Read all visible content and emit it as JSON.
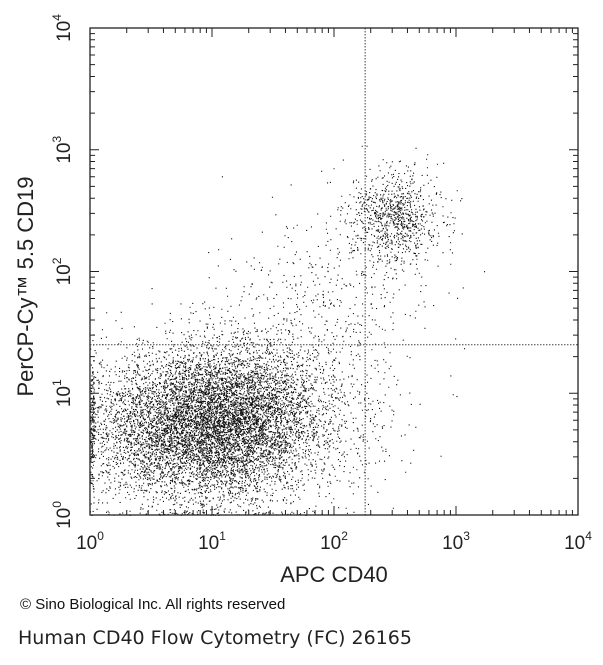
{
  "chart_data": {
    "type": "scatter",
    "xlabel": "APC CD40",
    "ylabel": "PerCP-Cy™ 5.5 CD19",
    "x_scale": "log",
    "y_scale": "log",
    "xlim": [
      1,
      10000
    ],
    "ylim": [
      1,
      10000
    ],
    "x_ticks": [
      {
        "value": 1,
        "base": "10",
        "exp": "0"
      },
      {
        "value": 10,
        "base": "10",
        "exp": "1"
      },
      {
        "value": 100,
        "base": "10",
        "exp": "2"
      },
      {
        "value": 1000,
        "base": "10",
        "exp": "3"
      },
      {
        "value": 10000,
        "base": "10",
        "exp": "4"
      }
    ],
    "y_ticks": [
      {
        "value": 1,
        "base": "10",
        "exp": "0"
      },
      {
        "value": 10,
        "base": "10",
        "exp": "1"
      },
      {
        "value": 100,
        "base": "10",
        "exp": "2"
      },
      {
        "value": 1000,
        "base": "10",
        "exp": "3"
      },
      {
        "value": 10000,
        "base": "10",
        "exp": "4"
      }
    ],
    "quadrant_gates": {
      "x": 180,
      "y": 25
    },
    "point_color": "#111111",
    "populations": [
      {
        "center": [
          12,
          6
        ],
        "spread_log": [
          0.38,
          0.32
        ],
        "count": 6500
      },
      {
        "center": [
          3,
          5
        ],
        "spread_log": [
          0.35,
          0.3
        ],
        "count": 1800
      },
      {
        "center": [
          50,
          7
        ],
        "spread_log": [
          0.4,
          0.35
        ],
        "count": 900
      },
      {
        "center": [
          320,
          280
        ],
        "spread_log": [
          0.18,
          0.2
        ],
        "count": 900
      },
      {
        "center": [
          90,
          60
        ],
        "spread_log": [
          0.45,
          0.35
        ],
        "count": 400
      }
    ],
    "grid": false,
    "legend": "none"
  },
  "footer": {
    "copyright": "© Sino Biological Inc. All rights reserved",
    "caption": "Human CD40 Flow Cytometry (FC) 26165"
  }
}
